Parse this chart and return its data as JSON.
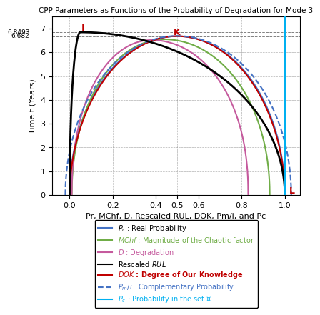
{
  "title": "CPP Parameters as Functions of the Probability of Degradation for Mode 3",
  "xlabel": "Pr, MChf, D, Rescaled RUL, DOK, Pm/i, and Pc",
  "ylabel": "Time t (Years)",
  "xlim": [
    -0.08,
    1.07
  ],
  "ylim": [
    0,
    7.5
  ],
  "yticks": [
    0,
    1,
    2,
    3,
    4,
    5,
    6,
    7
  ],
  "xticks": [
    0,
    0.2,
    0.4,
    0.5,
    0.6,
    0.8,
    1.0
  ],
  "t_max": 6.8493,
  "t_knee": 6.682,
  "hline1": 6.8493,
  "hline2": 6.682,
  "colors": {
    "Pr": "#4472c4",
    "MChf": "#70ad47",
    "D": "#c55a9d",
    "RUL": "#000000",
    "DOK": "#c00000",
    "Pm": "#4472c4",
    "Pc": "#00b0f0"
  },
  "legend_labels": [
    "$\\it{P_r}$ : Real Probability",
    "$\\it{MChf}$ : Magnitude of the Chaotic factor",
    "$\\it{D}$ : Degradation",
    "Rescaled $\\it{RUL}$",
    "$\\it{DOK}$ : Degree of Our Knowledge",
    "$\\it{P_{m}/i}$ : Complementary Probability",
    "$\\it{P_c}$ : Probability in the set $\\mathcal{C}$"
  ],
  "legend_colors": [
    "#4472c4",
    "#70ad47",
    "#c55a9d",
    "#000000",
    "#c00000",
    "#4472c4",
    "#00b0f0"
  ],
  "legend_linestyles": [
    "-",
    "-",
    "-",
    "-",
    "-",
    "--",
    "-"
  ]
}
